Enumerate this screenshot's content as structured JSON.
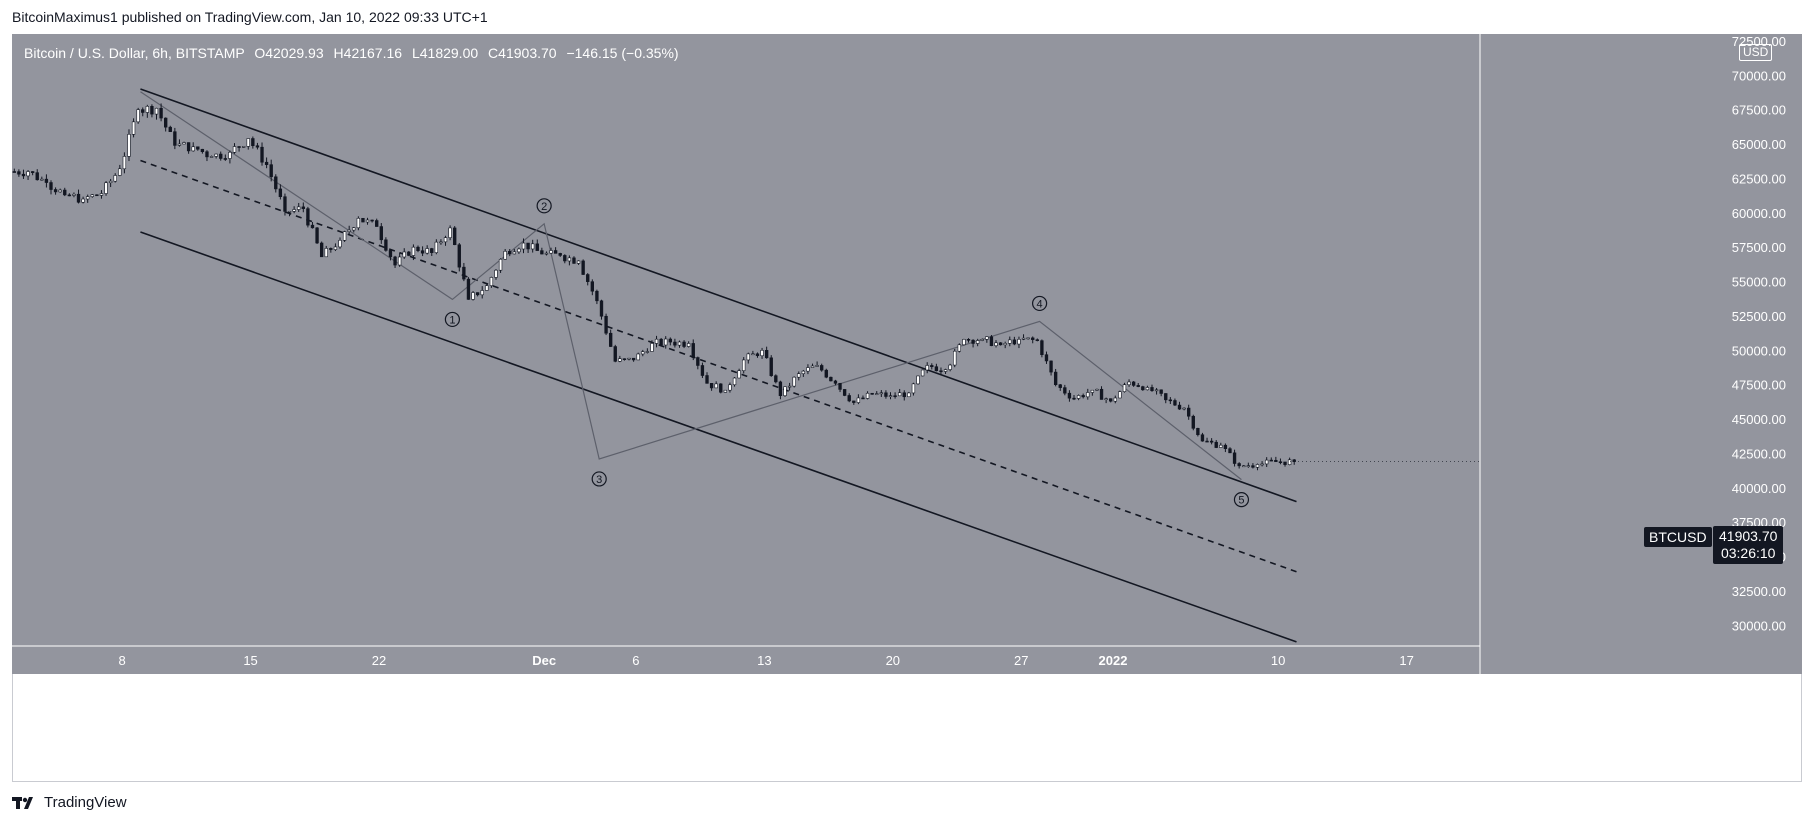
{
  "header": {
    "attribution": "BitcoinMaximus1 published on TradingView.com, Jan 10, 2022 09:33 UTC+1"
  },
  "legend": {
    "symbol": "Bitcoin / U.S. Dollar, 6h, BITSTAMP",
    "open_label": "O",
    "open": "42029.93",
    "high_label": "H",
    "high": "42167.16",
    "low_label": "L",
    "low": "41829.00",
    "close_label": "C",
    "close": "41903.70",
    "change": "−146.15 (−0.35%)"
  },
  "price_axis": {
    "currency": "USD"
  },
  "last_price": {
    "ticker": "BTCUSD",
    "price": "41903.70",
    "countdown": "03:26:10"
  },
  "footer": {
    "brand": "TradingView"
  },
  "colors": {
    "plot_background": "#93959e",
    "candle_up": "#ffffff",
    "candle_down": "#131722",
    "channel_line": "#131722",
    "wave_line": "#5d606b",
    "axis_text": "#ffffff"
  },
  "chart_data": {
    "type": "candlestick",
    "title": "",
    "xlabel": "",
    "ylabel": "",
    "ylim": [
      28500,
      73000
    ],
    "y_ticks": [
      30000,
      32500,
      35000,
      37500,
      40000,
      42500,
      45000,
      47500,
      50000,
      52500,
      55000,
      57500,
      60000,
      62500,
      65000,
      67500,
      70000,
      72500
    ],
    "y_tick_labels": [
      "30000.00",
      "32500.00",
      "35000.00",
      "37500.00",
      "40000.00",
      "42500.00",
      "45000.00",
      "47500.00",
      "50000.00",
      "52500.00",
      "55000.00",
      "57500.00",
      "60000.00",
      "62500.00",
      "65000.00",
      "67500.00",
      "70000.00",
      "72500.00"
    ],
    "x_range": [
      "2021-11-02",
      "2022-01-21"
    ],
    "x_ticks": [
      {
        "date": "2021-11-08",
        "label": "8"
      },
      {
        "date": "2021-11-15",
        "label": "15"
      },
      {
        "date": "2021-11-22",
        "label": "22"
      },
      {
        "date": "2021-12-01",
        "label": "Dec"
      },
      {
        "date": "2021-12-06",
        "label": "6"
      },
      {
        "date": "2021-12-13",
        "label": "13"
      },
      {
        "date": "2021-12-20",
        "label": "20"
      },
      {
        "date": "2021-12-27",
        "label": "27"
      },
      {
        "date": "2022-01-01",
        "label": "2022"
      },
      {
        "date": "2022-01-10",
        "label": "10"
      },
      {
        "date": "2022-01-17",
        "label": "17"
      }
    ],
    "daily_closes": [
      {
        "date": "2021-11-02",
        "close": 63000
      },
      {
        "date": "2021-11-03",
        "close": 62200
      },
      {
        "date": "2021-11-04",
        "close": 61300
      },
      {
        "date": "2021-11-05",
        "close": 61000
      },
      {
        "date": "2021-11-06",
        "close": 61400
      },
      {
        "date": "2021-11-07",
        "close": 63200
      },
      {
        "date": "2021-11-08",
        "close": 67500
      },
      {
        "date": "2021-11-09",
        "close": 67600
      },
      {
        "date": "2021-11-10",
        "close": 64900
      },
      {
        "date": "2021-11-11",
        "close": 64800
      },
      {
        "date": "2021-11-12",
        "close": 64100
      },
      {
        "date": "2021-11-13",
        "close": 64400
      },
      {
        "date": "2021-11-14",
        "close": 65400
      },
      {
        "date": "2021-11-15",
        "close": 63500
      },
      {
        "date": "2021-11-16",
        "close": 60100
      },
      {
        "date": "2021-11-17",
        "close": 60300
      },
      {
        "date": "2021-11-18",
        "close": 56800
      },
      {
        "date": "2021-11-19",
        "close": 58000
      },
      {
        "date": "2021-11-20",
        "close": 59600
      },
      {
        "date": "2021-11-21",
        "close": 59000
      },
      {
        "date": "2021-11-22",
        "close": 56200
      },
      {
        "date": "2021-11-23",
        "close": 57500
      },
      {
        "date": "2021-11-24",
        "close": 57100
      },
      {
        "date": "2021-11-25",
        "close": 58900
      },
      {
        "date": "2021-11-26",
        "close": 53700
      },
      {
        "date": "2021-11-27",
        "close": 54700
      },
      {
        "date": "2021-11-28",
        "close": 57200
      },
      {
        "date": "2021-11-29",
        "close": 57800
      },
      {
        "date": "2021-11-30",
        "close": 57000
      },
      {
        "date": "2021-12-01",
        "close": 56900
      },
      {
        "date": "2021-12-02",
        "close": 56500
      },
      {
        "date": "2021-12-03",
        "close": 53600
      },
      {
        "date": "2021-12-04",
        "close": 49200
      },
      {
        "date": "2021-12-05",
        "close": 49300
      },
      {
        "date": "2021-12-06",
        "close": 50500
      },
      {
        "date": "2021-12-07",
        "close": 50600
      },
      {
        "date": "2021-12-08",
        "close": 50500
      },
      {
        "date": "2021-12-09",
        "close": 47600
      },
      {
        "date": "2021-12-10",
        "close": 47100
      },
      {
        "date": "2021-12-11",
        "close": 49300
      },
      {
        "date": "2021-12-12",
        "close": 50000
      },
      {
        "date": "2021-12-13",
        "close": 46700
      },
      {
        "date": "2021-12-14",
        "close": 48300
      },
      {
        "date": "2021-12-15",
        "close": 48900
      },
      {
        "date": "2021-12-16",
        "close": 47600
      },
      {
        "date": "2021-12-17",
        "close": 46200
      },
      {
        "date": "2021-12-18",
        "close": 46800
      },
      {
        "date": "2021-12-19",
        "close": 46700
      },
      {
        "date": "2021-12-20",
        "close": 46900
      },
      {
        "date": "2021-12-21",
        "close": 48900
      },
      {
        "date": "2021-12-22",
        "close": 48600
      },
      {
        "date": "2021-12-23",
        "close": 50800
      },
      {
        "date": "2021-12-24",
        "close": 50800
      },
      {
        "date": "2021-12-25",
        "close": 50400
      },
      {
        "date": "2021-12-26",
        "close": 50800
      },
      {
        "date": "2021-12-27",
        "close": 50700
      },
      {
        "date": "2021-12-28",
        "close": 47500
      },
      {
        "date": "2021-12-29",
        "close": 46500
      },
      {
        "date": "2021-12-30",
        "close": 47100
      },
      {
        "date": "2021-12-31",
        "close": 46300
      },
      {
        "date": "2022-01-01",
        "close": 47700
      },
      {
        "date": "2022-01-02",
        "close": 47300
      },
      {
        "date": "2022-01-03",
        "close": 46400
      },
      {
        "date": "2022-01-04",
        "close": 45800
      },
      {
        "date": "2022-01-05",
        "close": 43400
      },
      {
        "date": "2022-01-06",
        "close": 43100
      },
      {
        "date": "2022-01-07",
        "close": 41600
      },
      {
        "date": "2022-01-08",
        "close": 41700
      },
      {
        "date": "2022-01-09",
        "close": 41900
      },
      {
        "date": "2022-01-10",
        "close": 41903.7
      }
    ],
    "channel_lines": [
      {
        "name": "upper",
        "style": "solid",
        "points": [
          {
            "date": "2021-11-09",
            "price": 69000
          },
          {
            "date": "2022-01-11",
            "price": 39000
          }
        ]
      },
      {
        "name": "middle",
        "style": "dashed",
        "points": [
          {
            "date": "2021-11-09",
            "price": 63800
          },
          {
            "date": "2022-01-11",
            "price": 33900
          }
        ]
      },
      {
        "name": "lower",
        "style": "solid",
        "points": [
          {
            "date": "2021-11-09",
            "price": 58600
          },
          {
            "date": "2022-01-11",
            "price": 28800
          }
        ]
      }
    ],
    "wave_path": [
      {
        "date": "2021-11-09",
        "price": 68800,
        "label": ""
      },
      {
        "date": "2021-11-26",
        "price": 53700,
        "label": "1"
      },
      {
        "date": "2021-12-01",
        "price": 59200,
        "label": "2"
      },
      {
        "date": "2021-12-04",
        "price": 42100,
        "label": "3"
      },
      {
        "date": "2021-12-28",
        "price": 52100,
        "label": "4"
      },
      {
        "date": "2022-01-08",
        "price": 40600,
        "label": "5"
      }
    ]
  }
}
